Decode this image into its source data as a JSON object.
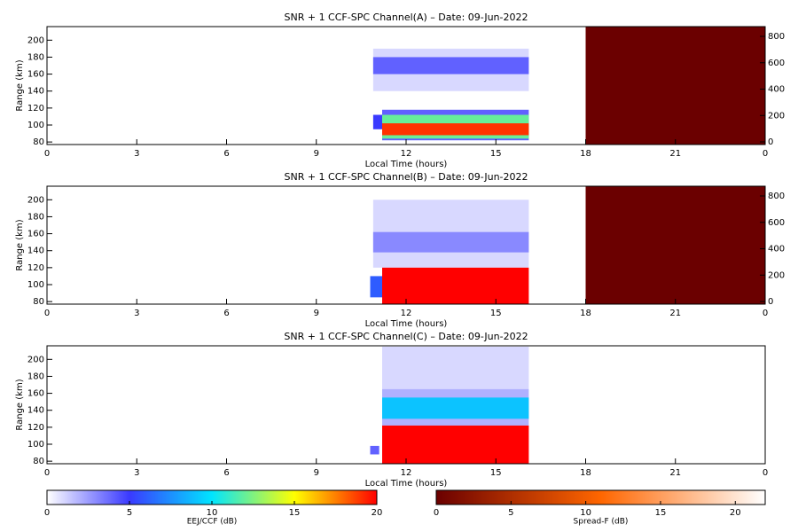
{
  "chart_data": [
    {
      "type": "heatmap",
      "title": "SNR + 1 CCF-SPC Channel(A) – Date: 09-Jun-2022",
      "xlabel": "Local Time (hours)",
      "ylabel": "Range (km)",
      "xlim": [
        0,
        24
      ],
      "xticks": [
        0,
        3,
        6,
        9,
        12,
        15,
        18,
        21,
        {
          "value": 24,
          "label": "0"
        }
      ],
      "ylim": [
        77,
        216
      ],
      "yticks": [
        80,
        100,
        120,
        140,
        160,
        180,
        200
      ],
      "y2lim": [
        -20,
        874
      ],
      "y2ticks": [
        0,
        200,
        400,
        600,
        800
      ],
      "regions": [
        {
          "x0": 10.9,
          "x1": 16.1,
          "y0": 140,
          "y1": 190,
          "value": 1
        },
        {
          "x0": 10.9,
          "x1": 16.1,
          "y0": 160,
          "y1": 180,
          "value": 4
        },
        {
          "x0": 11.2,
          "x1": 16.1,
          "y0": 82,
          "y1": 118,
          "value": 4
        },
        {
          "x0": 11.2,
          "x1": 16.1,
          "y0": 84,
          "y1": 112,
          "value": 12
        },
        {
          "x0": 11.2,
          "x1": 16.1,
          "y0": 88,
          "y1": 102,
          "value": 19
        },
        {
          "x0": 10.9,
          "x1": 11.2,
          "y0": 95,
          "y1": 112,
          "value": 5
        }
      ],
      "spread_f_regions": [
        {
          "x0": 18,
          "x1": 24,
          "y0": 77,
          "y1": 216,
          "value": 0
        }
      ]
    },
    {
      "type": "heatmap",
      "title": "SNR + 1 CCF-SPC Channel(B) – Date: 09-Jun-2022",
      "xlabel": "Local Time (hours)",
      "ylabel": "Range (km)",
      "xlim": [
        0,
        24
      ],
      "xticks": [
        0,
        3,
        6,
        9,
        12,
        15,
        18,
        21,
        {
          "value": 24,
          "label": "0"
        }
      ],
      "ylim": [
        77,
        216
      ],
      "yticks": [
        80,
        100,
        120,
        140,
        160,
        180,
        200
      ],
      "y2lim": [
        -20,
        874
      ],
      "y2ticks": [
        0,
        200,
        400,
        600,
        800
      ],
      "regions": [
        {
          "x0": 10.9,
          "x1": 16.1,
          "y0": 120,
          "y1": 200,
          "value": 1
        },
        {
          "x0": 10.9,
          "x1": 16.1,
          "y0": 138,
          "y1": 162,
          "value": 3
        },
        {
          "x0": 11.2,
          "x1": 16.1,
          "y0": 77,
          "y1": 120,
          "value": 20
        },
        {
          "x0": 10.8,
          "x1": 11.2,
          "y0": 85,
          "y1": 110,
          "value": 6
        }
      ],
      "spread_f_regions": [
        {
          "x0": 18,
          "x1": 24,
          "y0": 77,
          "y1": 216,
          "value": 0
        }
      ]
    },
    {
      "type": "heatmap",
      "title": "SNR + 1 CCF-SPC Channel(C) – Date: 09-Jun-2022",
      "xlabel": "Local Time (hours)",
      "ylabel": "Range (km)",
      "xlim": [
        0,
        24
      ],
      "xticks": [
        0,
        3,
        6,
        9,
        12,
        15,
        18,
        21,
        {
          "value": 24,
          "label": "0"
        }
      ],
      "ylim": [
        77,
        216
      ],
      "yticks": [
        80,
        100,
        120,
        140,
        160,
        180,
        200
      ],
      "regions": [
        {
          "x0": 11.2,
          "x1": 16.1,
          "y0": 165,
          "y1": 215,
          "value": 1
        },
        {
          "x0": 11.2,
          "x1": 16.1,
          "y0": 120,
          "y1": 165,
          "value": 2
        },
        {
          "x0": 11.2,
          "x1": 16.1,
          "y0": 130,
          "y1": 155,
          "value": 9
        },
        {
          "x0": 11.2,
          "x1": 16.1,
          "y0": 77,
          "y1": 122,
          "value": 20
        },
        {
          "x0": 10.8,
          "x1": 11.1,
          "y0": 88,
          "y1": 98,
          "value": 4
        }
      ]
    },
    {
      "type": "colorbar",
      "xlabel": "EEJ/CCF (dB)",
      "xlim": [
        0,
        20
      ],
      "xticks": [
        0,
        5,
        10,
        15,
        20
      ],
      "colormap": [
        "#ffffff",
        "#3a3aff",
        "#00e5ff",
        "#ffff00",
        "#ff0000"
      ]
    },
    {
      "type": "colorbar",
      "xlabel": "Spread-F (dB)",
      "xlim": [
        0,
        22
      ],
      "xticks": [
        0,
        5,
        10,
        15,
        20
      ],
      "colormap": [
        "#6b0000",
        "#ff6600",
        "#ffffff"
      ]
    }
  ]
}
